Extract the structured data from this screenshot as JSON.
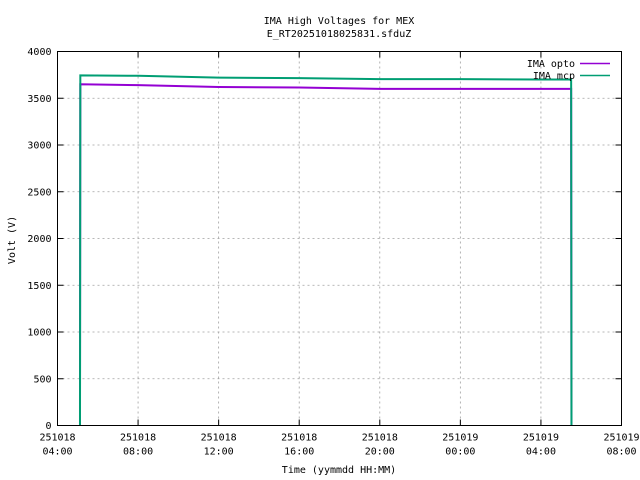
{
  "chart_data": {
    "type": "line",
    "title": "IMA High Voltages for MEX",
    "subtitle": "E_RT20251018025831.sfduZ",
    "xlabel": "Time (yymmdd HH:MM)",
    "ylabel": "Volt (V)",
    "xlim": [
      "2025-10-18 04:00",
      "2025-10-19 08:00"
    ],
    "ylim": [
      0,
      4000
    ],
    "x_ticks": [
      {
        "date": "251018",
        "time": "04:00"
      },
      {
        "date": "251018",
        "time": "08:00"
      },
      {
        "date": "251018",
        "time": "12:00"
      },
      {
        "date": "251018",
        "time": "16:00"
      },
      {
        "date": "251018",
        "time": "20:00"
      },
      {
        "date": "251019",
        "time": "00:00"
      },
      {
        "date": "251019",
        "time": "04:00"
      },
      {
        "date": "251019",
        "time": "08:00"
      }
    ],
    "y_ticks": [
      "0",
      "500",
      "1000",
      "1500",
      "2000",
      "2500",
      "3000",
      "3500",
      "4000"
    ],
    "grid": true,
    "legend_position": "top-right",
    "series": [
      {
        "name": "IMA opto",
        "color": "#9400d3",
        "points": [
          [
            "2025-10-18 05:07",
            0
          ],
          [
            "2025-10-18 05:07",
            220
          ],
          [
            "2025-10-18 05:08",
            3650
          ],
          [
            "2025-10-18 08:00",
            3640
          ],
          [
            "2025-10-18 12:00",
            3620
          ],
          [
            "2025-10-18 16:00",
            3615
          ],
          [
            "2025-10-18 20:00",
            3600
          ],
          [
            "2025-10-19 00:00",
            3600
          ],
          [
            "2025-10-19 04:00",
            3600
          ],
          [
            "2025-10-19 05:30",
            3600
          ],
          [
            "2025-10-19 05:31",
            0
          ]
        ]
      },
      {
        "name": "IMA mcp",
        "color": "#009e73",
        "points": [
          [
            "2025-10-18 05:07",
            0
          ],
          [
            "2025-10-18 05:08",
            3745
          ],
          [
            "2025-10-18 08:00",
            3740
          ],
          [
            "2025-10-18 12:00",
            3720
          ],
          [
            "2025-10-18 16:00",
            3715
          ],
          [
            "2025-10-18 20:00",
            3705
          ],
          [
            "2025-10-19 00:00",
            3705
          ],
          [
            "2025-10-19 04:00",
            3700
          ],
          [
            "2025-10-19 05:30",
            3700
          ],
          [
            "2025-10-19 05:31",
            0
          ]
        ]
      }
    ]
  }
}
